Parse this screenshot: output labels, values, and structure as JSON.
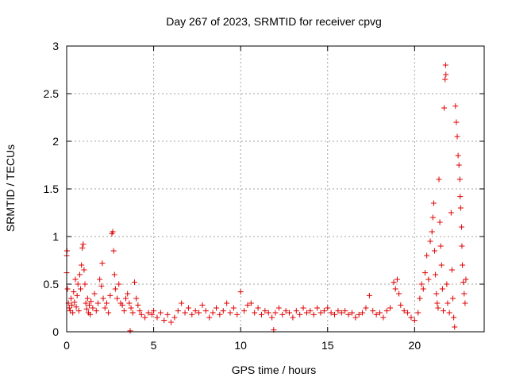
{
  "chart_data": {
    "type": "scatter",
    "title": "Day 267 of 2023, SRMTID for receiver cpvg",
    "xlabel": "GPS time / hours",
    "ylabel": "SRMTID / TECUs",
    "xlim": [
      0,
      24
    ],
    "ylim": [
      0,
      3
    ],
    "x_ticks": [
      0,
      5,
      10,
      15,
      20
    ],
    "x_tick_labels": [
      "0",
      "5",
      "10",
      "15",
      "20"
    ],
    "y_ticks": [
      0,
      0.5,
      1,
      1.5,
      2,
      2.5,
      3
    ],
    "y_tick_labels": [
      "0",
      "0.5",
      "1",
      "1.5",
      "2",
      "2.5",
      "3"
    ],
    "grid": true,
    "marker": "plus",
    "color": "#e00000",
    "series": [
      {
        "name": "SRMTID",
        "points": [
          [
            0.0,
            0.62
          ],
          [
            0.0,
            0.8
          ],
          [
            0.02,
            0.85
          ],
          [
            0.05,
            0.45
          ],
          [
            0.1,
            0.3
          ],
          [
            0.15,
            0.25
          ],
          [
            0.2,
            0.22
          ],
          [
            0.25,
            0.35
          ],
          [
            0.3,
            0.28
          ],
          [
            0.35,
            0.2
          ],
          [
            0.4,
            0.42
          ],
          [
            0.45,
            0.31
          ],
          [
            0.5,
            0.55
          ],
          [
            0.55,
            0.26
          ],
          [
            0.6,
            0.38
          ],
          [
            0.65,
            0.5
          ],
          [
            0.7,
            0.22
          ],
          [
            0.75,
            0.6
          ],
          [
            0.8,
            0.45
          ],
          [
            0.85,
            0.7
          ],
          [
            0.9,
            0.88
          ],
          [
            0.95,
            0.92
          ],
          [
            1.0,
            0.65
          ],
          [
            1.05,
            0.5
          ],
          [
            1.1,
            0.3
          ],
          [
            1.15,
            0.24
          ],
          [
            1.2,
            0.35
          ],
          [
            1.25,
            0.2
          ],
          [
            1.3,
            0.28
          ],
          [
            1.35,
            0.18
          ],
          [
            1.4,
            0.32
          ],
          [
            1.5,
            0.25
          ],
          [
            1.6,
            0.4
          ],
          [
            1.7,
            0.22
          ],
          [
            1.8,
            0.3
          ],
          [
            1.9,
            0.55
          ],
          [
            2.0,
            0.48
          ],
          [
            2.05,
            0.72
          ],
          [
            2.1,
            0.35
          ],
          [
            2.2,
            0.25
          ],
          [
            2.3,
            0.3
          ],
          [
            2.4,
            0.2
          ],
          [
            2.5,
            0.38
          ],
          [
            2.6,
            1.03
          ],
          [
            2.65,
            1.05
          ],
          [
            2.7,
            0.85
          ],
          [
            2.75,
            0.6
          ],
          [
            2.8,
            0.45
          ],
          [
            2.9,
            0.35
          ],
          [
            3.0,
            0.5
          ],
          [
            3.1,
            0.3
          ],
          [
            3.2,
            0.28
          ],
          [
            3.3,
            0.22
          ],
          [
            3.4,
            0.35
          ],
          [
            3.5,
            0.4
          ],
          [
            3.6,
            0.3
          ],
          [
            3.65,
            0.01
          ],
          [
            3.7,
            0.25
          ],
          [
            3.8,
            0.2
          ],
          [
            3.9,
            0.52
          ],
          [
            4.0,
            0.35
          ],
          [
            4.1,
            0.28
          ],
          [
            4.2,
            0.22
          ],
          [
            4.3,
            0.18
          ],
          [
            4.5,
            0.15
          ],
          [
            4.7,
            0.2
          ],
          [
            4.9,
            0.18
          ],
          [
            5.0,
            0.22
          ],
          [
            5.2,
            0.15
          ],
          [
            5.4,
            0.2
          ],
          [
            5.6,
            0.12
          ],
          [
            5.8,
            0.18
          ],
          [
            6.0,
            0.1
          ],
          [
            6.2,
            0.15
          ],
          [
            6.4,
            0.22
          ],
          [
            6.6,
            0.3
          ],
          [
            6.8,
            0.2
          ],
          [
            7.0,
            0.25
          ],
          [
            7.2,
            0.18
          ],
          [
            7.4,
            0.22
          ],
          [
            7.6,
            0.2
          ],
          [
            7.8,
            0.28
          ],
          [
            8.0,
            0.22
          ],
          [
            8.2,
            0.15
          ],
          [
            8.4,
            0.2
          ],
          [
            8.6,
            0.25
          ],
          [
            8.8,
            0.18
          ],
          [
            9.0,
            0.22
          ],
          [
            9.2,
            0.3
          ],
          [
            9.4,
            0.2
          ],
          [
            9.6,
            0.25
          ],
          [
            9.8,
            0.18
          ],
          [
            10.0,
            0.42
          ],
          [
            10.2,
            0.22
          ],
          [
            10.4,
            0.28
          ],
          [
            10.6,
            0.3
          ],
          [
            10.8,
            0.2
          ],
          [
            11.0,
            0.25
          ],
          [
            11.2,
            0.18
          ],
          [
            11.4,
            0.22
          ],
          [
            11.6,
            0.2
          ],
          [
            11.8,
            0.15
          ],
          [
            11.9,
            0.02
          ],
          [
            12.0,
            0.2
          ],
          [
            12.2,
            0.25
          ],
          [
            12.4,
            0.18
          ],
          [
            12.6,
            0.22
          ],
          [
            12.8,
            0.2
          ],
          [
            13.0,
            0.15
          ],
          [
            13.2,
            0.22
          ],
          [
            13.4,
            0.18
          ],
          [
            13.6,
            0.25
          ],
          [
            13.8,
            0.2
          ],
          [
            14.0,
            0.22
          ],
          [
            14.2,
            0.18
          ],
          [
            14.4,
            0.25
          ],
          [
            14.6,
            0.2
          ],
          [
            14.8,
            0.22
          ],
          [
            15.0,
            0.25
          ],
          [
            15.2,
            0.2
          ],
          [
            15.4,
            0.18
          ],
          [
            15.6,
            0.22
          ],
          [
            15.8,
            0.2
          ],
          [
            16.0,
            0.22
          ],
          [
            16.2,
            0.18
          ],
          [
            16.4,
            0.2
          ],
          [
            16.6,
            0.15
          ],
          [
            16.8,
            0.18
          ],
          [
            17.0,
            0.2
          ],
          [
            17.2,
            0.25
          ],
          [
            17.4,
            0.38
          ],
          [
            17.6,
            0.22
          ],
          [
            17.8,
            0.18
          ],
          [
            18.0,
            0.2
          ],
          [
            18.2,
            0.15
          ],
          [
            18.4,
            0.22
          ],
          [
            18.6,
            0.25
          ],
          [
            18.8,
            0.52
          ],
          [
            18.9,
            0.45
          ],
          [
            19.0,
            0.55
          ],
          [
            19.1,
            0.4
          ],
          [
            19.2,
            0.28
          ],
          [
            19.4,
            0.22
          ],
          [
            19.6,
            0.2
          ],
          [
            19.8,
            0.15
          ],
          [
            20.0,
            0.12
          ],
          [
            20.2,
            0.2
          ],
          [
            20.3,
            0.35
          ],
          [
            20.4,
            0.5
          ],
          [
            20.5,
            0.45
          ],
          [
            20.6,
            0.62
          ],
          [
            20.7,
            0.8
          ],
          [
            20.8,
            0.55
          ],
          [
            20.9,
            0.95
          ],
          [
            21.0,
            1.05
          ],
          [
            21.05,
            1.2
          ],
          [
            21.1,
            1.35
          ],
          [
            21.15,
            0.85
          ],
          [
            21.2,
            0.6
          ],
          [
            21.25,
            0.4
          ],
          [
            21.3,
            0.3
          ],
          [
            21.35,
            0.25
          ],
          [
            21.4,
            1.6
          ],
          [
            21.45,
            1.15
          ],
          [
            21.5,
            0.9
          ],
          [
            21.55,
            0.7
          ],
          [
            21.6,
            0.45
          ],
          [
            21.65,
            0.22
          ],
          [
            21.7,
            2.35
          ],
          [
            21.75,
            2.65
          ],
          [
            21.78,
            2.8
          ],
          [
            21.8,
            2.7
          ],
          [
            21.85,
            0.5
          ],
          [
            21.9,
            0.3
          ],
          [
            22.0,
            0.2
          ],
          [
            22.1,
            1.25
          ],
          [
            22.15,
            0.65
          ],
          [
            22.2,
            0.35
          ],
          [
            22.25,
            0.15
          ],
          [
            22.3,
            0.05
          ],
          [
            22.35,
            2.37
          ],
          [
            22.4,
            2.2
          ],
          [
            22.45,
            2.05
          ],
          [
            22.5,
            1.85
          ],
          [
            22.55,
            1.75
          ],
          [
            22.6,
            1.6
          ],
          [
            22.62,
            1.42
          ],
          [
            22.65,
            1.3
          ],
          [
            22.7,
            1.1
          ],
          [
            22.72,
            0.9
          ],
          [
            22.75,
            0.7
          ],
          [
            22.8,
            0.52
          ],
          [
            22.85,
            0.4
          ],
          [
            22.9,
            0.3
          ],
          [
            22.95,
            0.55
          ]
        ]
      }
    ]
  }
}
